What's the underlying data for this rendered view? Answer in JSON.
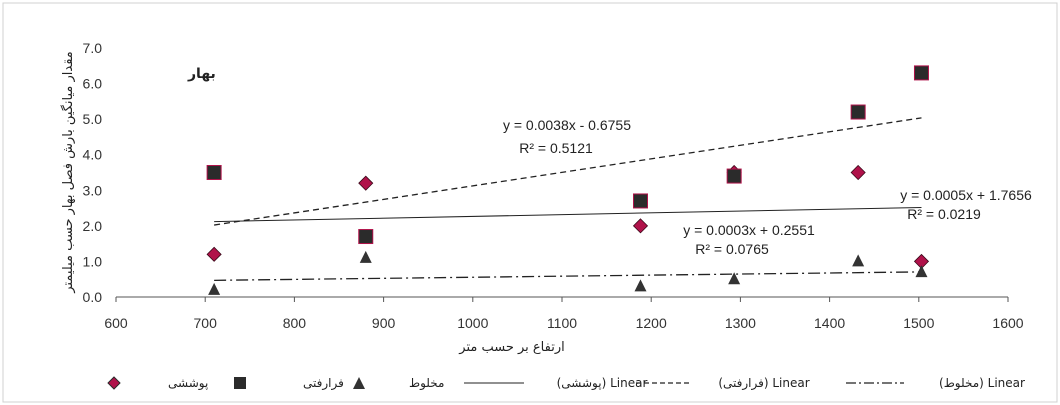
{
  "chart_data": {
    "type": "scatter",
    "season_label": "بهار",
    "xlabel": "ارتفاع بر حسب متر",
    "ylabel": "مقدار میانگین بارش فصل بهار حسب میلیمتر",
    "xlim": [
      600,
      1600
    ],
    "ylim": [
      0,
      7
    ],
    "x_ticks": [
      "600",
      "700",
      "800",
      "900",
      "1000",
      "1100",
      "1200",
      "1300",
      "1400",
      "1500",
      "1600"
    ],
    "y_ticks": [
      "0.0",
      "1.0",
      "2.0",
      "3.0",
      "4.0",
      "5.0",
      "6.0",
      "7.0"
    ],
    "grid": false,
    "legend_position": "bottom",
    "series": [
      {
        "name": "پوششی",
        "marker": "diamond",
        "color": "#b0124a",
        "x": [
          710,
          880,
          1188,
          1293,
          1432,
          1503
        ],
        "y": [
          1.2,
          3.2,
          2.0,
          3.5,
          3.5,
          1.0
        ]
      },
      {
        "name": "فرارفتی",
        "marker": "square",
        "color": "#2b2b2b",
        "x": [
          710,
          880,
          1188,
          1293,
          1432,
          1503
        ],
        "y": [
          3.5,
          1.7,
          2.7,
          3.4,
          5.2,
          6.3
        ]
      },
      {
        "name": "مخلوط",
        "marker": "triangle",
        "color": "#333333",
        "x": [
          710,
          880,
          1188,
          1293,
          1432,
          1503
        ],
        "y": [
          0.2,
          1.1,
          0.3,
          0.5,
          1.0,
          0.7
        ]
      }
    ],
    "trendlines": [
      {
        "legend": "Linear (پوششی)",
        "style": "solid",
        "slope": 0.0005,
        "intercept": 1.7656,
        "x_range": [
          710,
          1503
        ],
        "equation": "y = 0.0005x + 1.7656",
        "r2": "R² = 0.0219"
      },
      {
        "legend": "Linear (فرارفتی)",
        "style": "dashed",
        "slope": 0.0038,
        "intercept": -0.6755,
        "x_range": [
          710,
          1503
        ],
        "equation": "y = 0.0038x - 0.6755",
        "r2": "R² = 0.5121"
      },
      {
        "legend": "Linear (مخلوط)",
        "style": "dashdot",
        "slope": 0.0003,
        "intercept": 0.2551,
        "x_range": [
          710,
          1503
        ],
        "equation": "y = 0.0003x + 0.2551",
        "r2": "R² = 0.0765"
      }
    ]
  }
}
